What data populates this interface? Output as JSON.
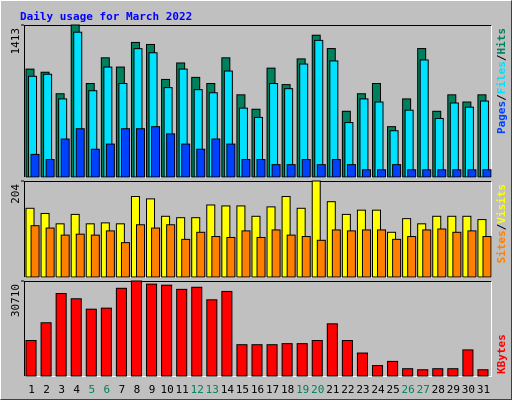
{
  "chart_data": [
    {
      "type": "bar",
      "title": "Daily usage for March 2022",
      "ylim": [
        0,
        1413
      ],
      "yticks": [
        1413
      ],
      "legend_separator": "/",
      "series": [
        {
          "name": "Hits",
          "color": "#00805c",
          "values": [
            1003,
            974,
            774,
            1413,
            869,
            1108,
            1022,
            1251,
            1232,
            907,
            1060,
            926,
            869,
            1108,
            764,
            630,
            1012,
            859,
            1098,
            1318,
            1194,
            611,
            774,
            869,
            468,
            726,
            1194,
            611,
            764,
            697,
            764
          ]
        },
        {
          "name": "Files",
          "color": "#00e0ff",
          "values": [
            936,
            955,
            726,
            1346,
            802,
            1022,
            869,
            1193,
            1155,
            831,
            1003,
            812,
            783,
            985,
            640,
            554,
            869,
            821,
            1050,
            1270,
            1079,
            506,
            726,
            697,
            430,
            621,
            1088,
            544,
            688,
            649,
            706
          ]
        },
        {
          "name": "Pages",
          "color": "#0040ff",
          "values": [
            210,
            162,
            353,
            449,
            258,
            306,
            449,
            449,
            468,
            401,
            306,
            258,
            353,
            306,
            162,
            162,
            115,
            115,
            162,
            115,
            162,
            115,
            67,
            67,
            115,
            67,
            67,
            67,
            67,
            67,
            67
          ]
        }
      ]
    },
    {
      "type": "bar",
      "ylim": [
        0,
        204
      ],
      "yticks": [
        204
      ],
      "legend_separator": "/",
      "series": [
        {
          "name": "Visits",
          "color": "#ffff00",
          "values": [
            146,
            135,
            113,
            133,
            113,
            115,
            113,
            171,
            166,
            129,
            126,
            126,
            153,
            151,
            151,
            129,
            149,
            171,
            146,
            204,
            160,
            133,
            142,
            142,
            95,
            124,
            113,
            129,
            129,
            129,
            122
          ]
        },
        {
          "name": "Sites",
          "color": "#ff8000",
          "values": [
            109,
            104,
            89,
            91,
            89,
            98,
            73,
            111,
            104,
            111,
            80,
            95,
            86,
            84,
            98,
            84,
            100,
            89,
            86,
            78,
            100,
            98,
            100,
            100,
            80,
            86,
            100,
            102,
            95,
            98,
            86
          ]
        }
      ]
    },
    {
      "type": "bar",
      "ylim": [
        0,
        30710
      ],
      "yticks": [
        30710
      ],
      "categories": [
        "1",
        "2",
        "3",
        "4",
        "5",
        "6",
        "7",
        "8",
        "9",
        "10",
        "11",
        "12",
        "13",
        "14",
        "15",
        "16",
        "17",
        "18",
        "19",
        "20",
        "21",
        "22",
        "23",
        "24",
        "25",
        "26",
        "27",
        "28",
        "29",
        "30",
        "31"
      ],
      "category_colors": [
        "#000000",
        "#000000",
        "#000000",
        "#000000",
        "#00805c",
        "#00805c",
        "#000000",
        "#000000",
        "#000000",
        "#000000",
        "#000000",
        "#00805c",
        "#00805c",
        "#000000",
        "#000000",
        "#000000",
        "#000000",
        "#000000",
        "#00805c",
        "#00805c",
        "#000000",
        "#000000",
        "#000000",
        "#000000",
        "#000000",
        "#00805c",
        "#00805c",
        "#000000",
        "#000000",
        "#000000",
        "#000000"
      ],
      "series": [
        {
          "name": "KBytes",
          "color": "#ff0000",
          "values": [
            11475,
            17213,
            26663,
            24975,
            21600,
            21938,
            28350,
            30710,
            29700,
            29363,
            28013,
            28688,
            24638,
            27338,
            10125,
            10125,
            10125,
            10463,
            10463,
            11475,
            16875,
            11475,
            7425,
            3375,
            4725,
            2363,
            2025,
            2363,
            2363,
            8438,
            2025
          ]
        }
      ]
    }
  ]
}
